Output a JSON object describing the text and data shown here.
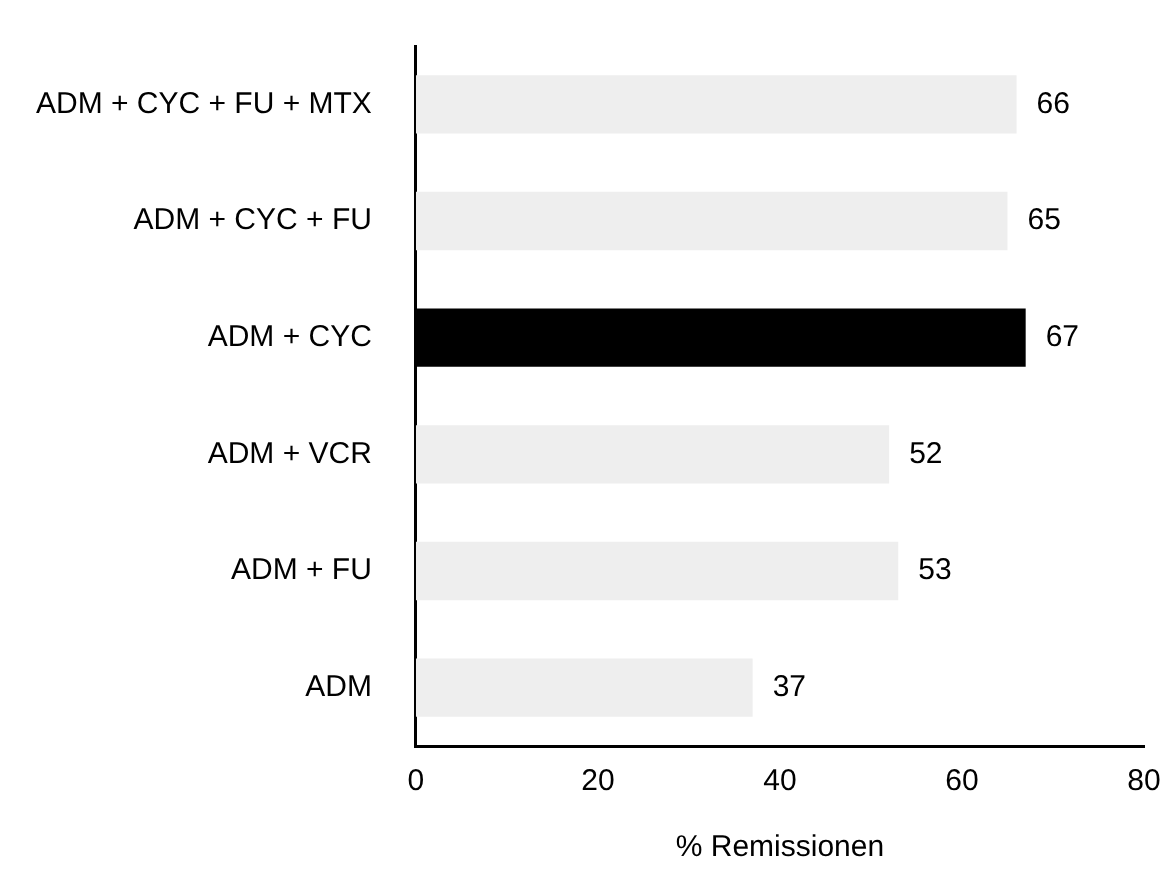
{
  "chart_data": {
    "type": "bar",
    "orientation": "horizontal",
    "xlabel": "% Remissionen",
    "categories": [
      "ADM + CYC + FU + MTX",
      "ADM + CYC + FU",
      "ADM + CYC",
      "ADM + VCR",
      "ADM + FU",
      "ADM"
    ],
    "values": [
      66,
      65,
      67,
      52,
      53,
      37
    ],
    "colors": [
      "#eeeeee",
      "#eeeeee",
      "#000000",
      "#eeeeee",
      "#eeeeee",
      "#eeeeee"
    ],
    "xlim": [
      0,
      80
    ],
    "xticks": [
      0,
      20,
      40,
      60,
      80
    ],
    "data_labels": true,
    "grid": false,
    "legend": false
  }
}
